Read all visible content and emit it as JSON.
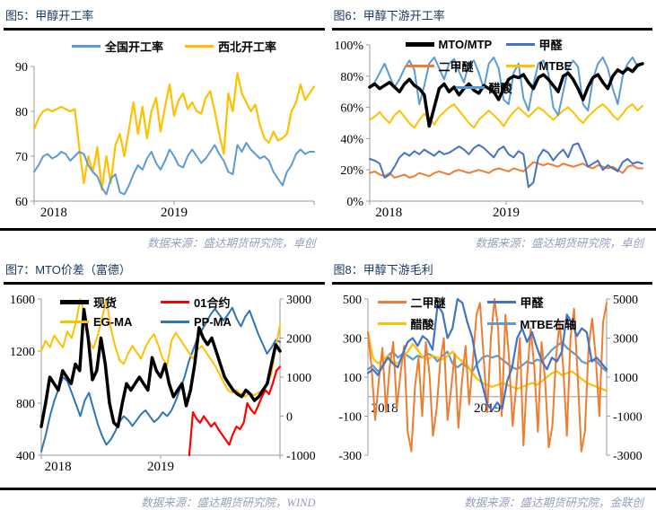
{
  "page": {
    "background": "#ffffff",
    "title_color": "#17375e",
    "source_color": "#93a0bc",
    "axis_color": "#9b9b9b"
  },
  "chart_data": [
    {
      "id": "chart5",
      "title": "图5：甲醇开工率",
      "source": "数据来源：盛达期货研究院，卓创",
      "type": "line",
      "x_labels": [
        {
          "label": "2018",
          "pos": 0.07
        },
        {
          "label": "2019",
          "pos": 0.5
        }
      ],
      "left_axis": {
        "min": 60,
        "max": 90,
        "tick_values": [
          90,
          80,
          70,
          60
        ],
        "tick_labels": [
          "90",
          "80",
          "70",
          "60"
        ]
      },
      "series": [
        {
          "name": "全国开工率",
          "color": "#5B9BD5",
          "width": 2,
          "z": 2,
          "values": [
            66.5,
            68,
            70,
            70.5,
            69.5,
            70,
            71,
            70.5,
            69,
            70,
            71,
            70.5,
            68,
            66.5,
            65.5,
            63,
            61.5,
            65,
            66,
            62,
            61.5,
            63.5,
            66,
            68,
            67,
            69.5,
            71,
            68.5,
            67,
            69,
            71.5,
            70,
            68,
            67.5,
            70,
            71.5,
            70,
            68.5,
            69.5,
            71,
            72.5,
            70.5,
            69,
            66.5,
            66,
            72.5,
            71,
            73,
            71.5,
            70.5,
            69.5,
            70,
            69,
            66.5,
            65,
            63.5,
            66.5,
            68,
            70.5,
            71.5,
            70.5,
            71,
            71
          ]
        },
        {
          "name": "西北开工率",
          "color": "#FFC000",
          "width": 2.2,
          "z": 1,
          "values": [
            76,
            78.5,
            80,
            80.5,
            80,
            80.5,
            81,
            80.5,
            80,
            80.5,
            72,
            64,
            70,
            66.5,
            72,
            62.5,
            70,
            64,
            72.5,
            75,
            70,
            76,
            82,
            75,
            81,
            74,
            80,
            83,
            75.5,
            81,
            86,
            79,
            82.5,
            84,
            80.5,
            82,
            80,
            79.5,
            83,
            84.5,
            80,
            75,
            70.5,
            84,
            80,
            88.5,
            84,
            82,
            80,
            81.5,
            77,
            74,
            73,
            75.5,
            73.5,
            74,
            75,
            80,
            82,
            86,
            82.5,
            84,
            85.5
          ]
        }
      ]
    },
    {
      "id": "chart6",
      "title": "图6：甲醇下游开工率",
      "source": "数据来源：盛达期货研究院，卓创",
      "type": "line",
      "x_labels": [
        {
          "label": "2018",
          "pos": 0.07
        },
        {
          "label": "2019",
          "pos": 0.5
        }
      ],
      "left_axis": {
        "min": 0,
        "max": 100,
        "tick_values": [
          100,
          80,
          60,
          40,
          20,
          0
        ],
        "tick_labels": [
          "100%",
          "80%",
          "60%",
          "40%",
          "20%",
          "0%"
        ]
      },
      "series": [
        {
          "name": "MTO/MTP",
          "color": "#000000",
          "width": 3.5,
          "z": 5,
          "values": [
            73,
            75,
            72,
            74,
            76,
            73,
            70,
            75,
            78,
            74,
            72,
            68,
            48,
            60,
            72,
            75,
            70,
            73,
            68,
            72,
            75,
            71,
            69,
            74,
            72,
            70,
            65,
            72,
            78,
            80,
            79,
            81,
            76,
            72,
            79,
            81,
            78,
            74,
            70,
            80,
            82,
            78,
            72,
            65,
            73,
            79,
            81,
            76,
            72,
            80,
            84,
            82,
            85,
            83,
            87,
            88
          ]
        },
        {
          "name": "甲醛",
          "color": "#4472C4",
          "width": 2,
          "z": 3,
          "values": [
            27,
            26,
            24,
            15,
            17,
            22,
            28,
            31,
            29,
            32,
            30,
            33,
            31,
            29,
            32,
            30,
            31,
            33,
            35,
            33,
            30,
            34,
            36,
            34,
            31,
            28,
            33,
            35,
            30,
            28,
            32,
            30,
            9,
            12,
            28,
            33,
            31,
            26,
            30,
            33,
            28,
            36,
            37,
            30,
            22,
            24,
            26,
            20,
            23,
            21,
            19,
            25,
            27,
            24,
            25,
            24
          ]
        },
        {
          "name": "二甲醚",
          "color": "#ED7D31",
          "width": 2,
          "z": 1,
          "values": [
            18,
            19,
            17,
            16,
            18,
            15,
            16,
            17,
            15,
            16,
            18,
            17,
            16,
            18,
            19,
            18,
            17,
            19,
            20,
            19,
            18,
            19,
            20,
            19,
            18,
            20,
            21,
            20,
            19,
            21,
            20,
            19,
            22,
            25,
            24,
            23,
            24,
            23,
            22,
            24,
            23,
            22,
            23,
            24,
            22,
            21,
            23,
            22,
            21,
            22,
            20,
            18,
            22,
            23,
            21,
            21
          ]
        },
        {
          "name": "MTBE",
          "color": "#FFC000",
          "width": 2,
          "z": 2,
          "values": [
            52,
            54,
            57,
            53,
            50,
            55,
            58,
            54,
            50,
            47,
            52,
            56,
            53,
            49,
            54,
            57,
            60,
            62,
            58,
            54,
            50,
            47,
            52,
            55,
            58,
            55,
            52,
            48,
            53,
            57,
            60,
            57,
            54,
            57,
            60,
            58,
            55,
            52,
            55,
            58,
            60,
            57,
            53,
            50,
            54,
            57,
            60,
            62,
            59,
            55,
            52,
            56,
            60,
            62,
            58,
            61
          ]
        },
        {
          "name": "醋酸",
          "color": "#5B9BD5",
          "width": 2,
          "z": 4,
          "values": [
            73,
            76,
            82,
            88,
            80,
            73,
            78,
            85,
            90,
            84,
            62,
            74,
            88,
            92,
            85,
            78,
            88,
            91,
            83,
            76,
            88,
            90,
            82,
            72,
            88,
            92,
            85,
            65,
            62,
            82,
            88,
            66,
            58,
            75,
            88,
            90,
            82,
            60,
            55,
            70,
            85,
            90,
            86,
            62,
            58,
            78,
            88,
            92,
            85,
            72,
            62,
            80,
            88,
            92,
            86,
            88
          ]
        }
      ]
    },
    {
      "id": "chart7",
      "title": "图7：MTO价差（富德）",
      "source": "数据来源：盛达期货研究院，WIND",
      "type": "line",
      "x_labels": [
        {
          "label": "2018",
          "pos": 0.07
        },
        {
          "label": "2019",
          "pos": 0.5
        }
      ],
      "left_axis": {
        "min": 400,
        "max": 1600,
        "tick_values": [
          1600,
          1200,
          800,
          400
        ],
        "tick_labels": [
          "1600",
          "1200",
          "800",
          "400"
        ]
      },
      "right_axis": {
        "min": -1000,
        "max": 3000,
        "tick_values": [
          3000,
          2000,
          1000,
          0,
          -1000
        ],
        "tick_labels": [
          "3000",
          "2000",
          "1000",
          "0",
          "-1000"
        ]
      },
      "series": [
        {
          "name": "现货",
          "color": "#000000",
          "width": 3.5,
          "z": 4,
          "values": [
            620,
            800,
            1000,
            950,
            900,
            1050,
            1000,
            950,
            1100,
            1050,
            1520,
            1300,
            980,
            1050,
            1300,
            1100,
            800,
            650,
            620,
            800,
            950,
            900,
            950,
            1000,
            950,
            900,
            1150,
            1050,
            1000,
            1100,
            950,
            850,
            900,
            950,
            780,
            900,
            1100,
            1380,
            1300,
            1250,
            1300,
            1200,
            1100,
            1000,
            950,
            900,
            870,
            850,
            900,
            870,
            820,
            850,
            900,
            950,
            1100,
            1250,
            1200
          ]
        },
        {
          "name": "01合约",
          "color": "#FF0000",
          "width": 2.2,
          "z": 3,
          "x_start": 0.62,
          "x_end": 1,
          "values": [
            400,
            730,
            680,
            650,
            700,
            660,
            620,
            650,
            600,
            560,
            520,
            480,
            560,
            620,
            600,
            650,
            800,
            750,
            720,
            780,
            850,
            900,
            870,
            950,
            1050,
            1080
          ]
        },
        {
          "name": "EG-MA",
          "color": "#FFC000",
          "width": 2,
          "z": 2,
          "values": [
            1200,
            1280,
            1230,
            1320,
            1270,
            1230,
            1350,
            1300,
            1420,
            1600,
            1480,
            1280,
            1220,
            1320,
            1450,
            1600,
            1380,
            1240,
            1130,
            1100,
            1180,
            1240,
            1190,
            1140,
            1230,
            1290,
            1330,
            1240,
            1140,
            1090,
            1280,
            1340,
            1290,
            1240,
            1190,
            1140,
            1210,
            1240,
            1190,
            1140,
            1090,
            1030,
            960,
            900,
            880,
            900,
            870,
            850,
            880,
            860,
            880,
            900,
            950,
            1020,
            1230,
            1400
          ]
        },
        {
          "name": "PP-MA",
          "color": "#2E75B6",
          "width": 2,
          "z": 1,
          "axis": "right",
          "values": [
            -900,
            -500,
            0,
            400,
            700,
            1000,
            900,
            600,
            300,
            0,
            400,
            600,
            200,
            -200,
            -500,
            -730,
            -600,
            -400,
            -150,
            0,
            -100,
            -250,
            -100,
            50,
            150,
            0,
            -150,
            -50,
            100,
            0,
            150,
            400,
            700,
            1000,
            1400,
            1700,
            2000,
            2200,
            2400,
            2600,
            2750,
            2600,
            2450,
            2600,
            2780,
            2500,
            2300,
            2550,
            2700,
            2400,
            2100,
            1850,
            1600,
            1750,
            1950,
            1900
          ]
        }
      ]
    },
    {
      "id": "chart8",
      "title": "图8：甲醇下游毛利",
      "source": "数据来源：盛达期货研究院，金联创",
      "type": "line",
      "x_axis_value": 0,
      "x_labels": [
        {
          "label": "2018",
          "pos": 0.07
        },
        {
          "label": "2019",
          "pos": 0.5
        }
      ],
      "left_axis": {
        "min": -300,
        "max": 500,
        "tick_values": [
          500,
          300,
          100,
          -100,
          -300
        ],
        "tick_labels": [
          "500",
          "300",
          "100",
          "-100",
          "-300"
        ]
      },
      "right_axis": {
        "min": -3000,
        "max": 5000,
        "tick_values": [
          5000,
          3000,
          1000,
          -1000,
          -3000
        ],
        "tick_labels": [
          "5000",
          "3000",
          "1000",
          "-1000",
          "-3000"
        ]
      },
      "series": [
        {
          "name": "二甲醚",
          "color": "#ED7D31",
          "width": 2,
          "z": 3,
          "values": [
            330,
            150,
            -120,
            80,
            250,
            -80,
            150,
            280,
            -60,
            120,
            260,
            -180,
            -280,
            50,
            200,
            -100,
            280,
            120,
            -200,
            -60,
            180,
            300,
            -120,
            40,
            220,
            -160,
            80,
            260,
            -40,
            180,
            420,
            480,
            200,
            -80,
            300,
            500,
            350,
            -100,
            420,
            200,
            -150,
            50,
            300,
            -250,
            100,
            350,
            150,
            -180,
            280,
            80,
            -260,
            -150,
            200,
            380,
            150,
            -200,
            300,
            450,
            100,
            -280,
            -180,
            250,
            400,
            200,
            -100,
            380,
            480
          ]
        },
        {
          "name": "甲醛",
          "color": "#4472C4",
          "width": 2.2,
          "z": 4,
          "values": [
            120,
            140,
            110,
            160,
            200,
            170,
            150,
            220,
            280,
            300,
            260,
            310,
            290,
            240,
            470,
            430,
            300,
            350,
            500,
            480,
            380,
            300,
            150,
            60,
            -40,
            -70,
            -30,
            -60,
            80,
            150,
            300,
            350,
            280,
            330,
            250,
            180,
            140,
            200,
            180,
            230,
            420,
            380,
            310,
            350,
            330,
            180,
            200,
            170,
            140
          ]
        },
        {
          "name": "醋酸",
          "color": "#FFC000",
          "width": 2.2,
          "z": 2,
          "values": [
            330,
            200,
            170,
            190,
            210,
            180,
            170,
            200,
            230,
            270,
            240,
            200,
            190,
            210,
            200,
            190,
            210,
            230,
            200,
            180,
            160,
            120,
            90,
            70,
            60,
            50,
            60,
            70,
            60,
            50,
            40,
            50,
            60,
            70,
            60,
            80,
            100,
            120,
            130,
            110,
            120,
            130,
            110,
            90,
            70,
            60,
            50,
            40,
            30
          ]
        },
        {
          "name": "MTBE右轴",
          "color": "#5B9BD5",
          "width": 2.2,
          "z": 1,
          "axis": "right",
          "values": [
            1400,
            1600,
            1300,
            1500,
            2100,
            2300,
            2000,
            2200,
            2100,
            1900,
            2100,
            2000,
            2200,
            2100,
            1800,
            2100,
            2300,
            1700,
            1500,
            1700,
            1500,
            1300,
            1700,
            2000,
            2100,
            2000,
            2100,
            1900,
            1700,
            1500,
            1400,
            1600,
            1800,
            1700,
            1900,
            1800,
            2100,
            2400,
            2600,
            2800,
            2500,
            2300,
            2100,
            1800,
            1700,
            1900,
            1800,
            1500,
            1300
          ]
        }
      ]
    }
  ]
}
